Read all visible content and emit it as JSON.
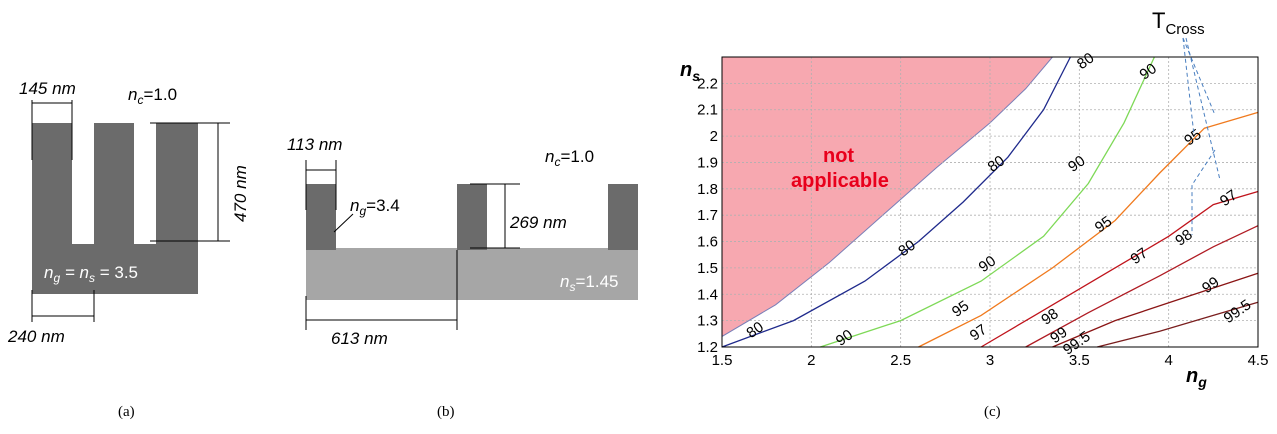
{
  "panel_a": {
    "caption": "(a)",
    "width_label": "145",
    "width_unit": "nm",
    "height_label": "470",
    "height_unit": "nm",
    "period_label": "240",
    "period_unit": "nm",
    "nc_n": "n",
    "nc_sub": "c",
    "nc_val": "=1.0",
    "ng_n": "n",
    "ng_sub": "g",
    "ns_eq": " = n",
    "ns_sub": "s",
    "ns_val": " = 3.5"
  },
  "panel_b": {
    "caption": "(b)",
    "width_label": "113",
    "width_unit": "nm",
    "height_label": "269",
    "height_unit": "nm",
    "period_label": "613",
    "period_unit": "nm",
    "nc_n": "n",
    "nc_sub": "c",
    "nc_val": "=1.0",
    "ng_n": "n",
    "ng_sub": "g",
    "ng_val": "=3.4",
    "ns_n": "n",
    "ns_sub": "s",
    "ns_val": "=1.45"
  },
  "panel_c": {
    "caption": "(c)",
    "not_applicable_line1": "not",
    "not_applicable_line2": "applicable",
    "tcross_main": "T",
    "tcross_sub": "Cross",
    "ylabel_n": "n",
    "ylabel_sub": "s",
    "xlabel_n": "n",
    "xlabel_sub": "g"
  },
  "colors": {
    "grating_dark": "#6b6b6b",
    "substrate_light": "#a6a6a6",
    "not_applicable_fill": "#f7a8b0",
    "c80": "#1f2a8c",
    "c90": "#7ed957",
    "c95": "#f07a1e",
    "c97": "#c0141c",
    "c98": "#b01c24",
    "c99": "#8a1414",
    "c995": "#7a1e1e"
  },
  "chart_data": {
    "type": "contour",
    "xlabel": "n_g",
    "ylabel": "n_s",
    "xlim": [
      1.5,
      4.5
    ],
    "ylim": [
      1.2,
      2.3
    ],
    "xticks": [
      1.5,
      2,
      2.5,
      3,
      3.5,
      4,
      4.5
    ],
    "yticks": [
      1.2,
      1.3,
      1.4,
      1.5,
      1.6,
      1.7,
      1.8,
      1.9,
      2,
      2.1,
      2.2
    ],
    "grid": true,
    "not_applicable_boundary": [
      [
        1.5,
        1.24
      ],
      [
        1.8,
        1.36
      ],
      [
        2.1,
        1.52
      ],
      [
        2.4,
        1.7
      ],
      [
        2.7,
        1.88
      ],
      [
        3.0,
        2.05
      ],
      [
        3.2,
        2.18
      ],
      [
        3.35,
        2.3
      ]
    ],
    "series": [
      {
        "level": "80",
        "color_key": "c80",
        "points": [
          [
            1.5,
            1.2
          ],
          [
            1.9,
            1.3
          ],
          [
            2.3,
            1.45
          ],
          [
            2.6,
            1.6
          ],
          [
            2.85,
            1.75
          ],
          [
            3.1,
            1.92
          ],
          [
            3.3,
            2.1
          ],
          [
            3.45,
            2.3
          ]
        ],
        "labels": [
          [
            1.7,
            1.25
          ],
          [
            2.55,
            1.56
          ],
          [
            3.05,
            1.88
          ],
          [
            3.55,
            2.27
          ]
        ]
      },
      {
        "level": "90",
        "color_key": "c90",
        "points": [
          [
            2.05,
            1.2
          ],
          [
            2.5,
            1.3
          ],
          [
            2.95,
            1.45
          ],
          [
            3.3,
            1.62
          ],
          [
            3.55,
            1.82
          ],
          [
            3.75,
            2.05
          ],
          [
            3.92,
            2.3
          ]
        ],
        "labels": [
          [
            2.2,
            1.22
          ],
          [
            3.0,
            1.5
          ],
          [
            3.5,
            1.88
          ],
          [
            3.9,
            2.23
          ]
        ]
      },
      {
        "level": "95",
        "color_key": "c95",
        "points": [
          [
            2.6,
            1.2
          ],
          [
            2.95,
            1.32
          ],
          [
            3.35,
            1.5
          ],
          [
            3.7,
            1.68
          ],
          [
            3.95,
            1.86
          ],
          [
            4.2,
            2.03
          ],
          [
            4.5,
            2.09
          ]
        ],
        "labels": [
          [
            2.85,
            1.33
          ],
          [
            3.65,
            1.65
          ],
          [
            4.15,
            1.98
          ]
        ]
      },
      {
        "level": "97",
        "color_key": "c97",
        "points": [
          [
            2.95,
            1.2
          ],
          [
            3.25,
            1.32
          ],
          [
            3.65,
            1.48
          ],
          [
            4.0,
            1.62
          ],
          [
            4.25,
            1.74
          ],
          [
            4.5,
            1.79
          ]
        ],
        "labels": [
          [
            2.95,
            1.24
          ],
          [
            3.85,
            1.53
          ],
          [
            4.35,
            1.75
          ]
        ]
      },
      {
        "level": "98",
        "color_key": "c98",
        "points": [
          [
            3.2,
            1.2
          ],
          [
            3.55,
            1.33
          ],
          [
            3.95,
            1.47
          ],
          [
            4.25,
            1.58
          ],
          [
            4.5,
            1.66
          ]
        ],
        "labels": [
          [
            3.35,
            1.3
          ],
          [
            4.1,
            1.6
          ]
        ]
      },
      {
        "level": "99",
        "color_key": "c99",
        "points": [
          [
            3.35,
            1.2
          ],
          [
            3.7,
            1.3
          ],
          [
            4.1,
            1.39
          ],
          [
            4.5,
            1.48
          ]
        ],
        "labels": [
          [
            3.4,
            1.23
          ],
          [
            4.25,
            1.42
          ]
        ]
      },
      {
        "level": "99.5",
        "color_key": "c995",
        "points": [
          [
            3.6,
            1.2
          ],
          [
            3.95,
            1.26
          ],
          [
            4.25,
            1.32
          ],
          [
            4.5,
            1.37
          ]
        ],
        "labels": [
          [
            3.5,
            1.2
          ],
          [
            4.4,
            1.32
          ]
        ]
      }
    ]
  }
}
